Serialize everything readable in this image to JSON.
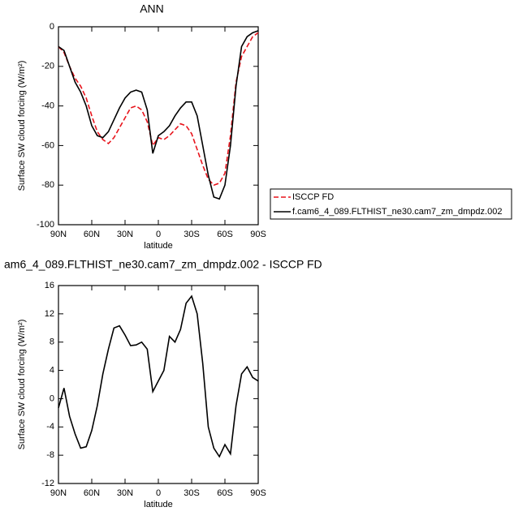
{
  "chart_data": [
    {
      "type": "line",
      "title": "ANN",
      "xlabel": "latitude",
      "ylabel": "Surface SW cloud forcing (W/m²)",
      "x": [
        90,
        85,
        80,
        75,
        70,
        65,
        60,
        55,
        50,
        45,
        40,
        35,
        30,
        25,
        20,
        15,
        10,
        5,
        0,
        -5,
        -10,
        -15,
        -20,
        -25,
        -30,
        -35,
        -40,
        -45,
        -50,
        -55,
        -60,
        -65,
        -70,
        -75,
        -80,
        -85,
        -90
      ],
      "series": [
        {
          "name": "ISCCP FD",
          "color": "#e8141c",
          "style": "dashed",
          "values": [
            -10,
            -13,
            -20,
            -26,
            -30,
            -36,
            -45,
            -53,
            -57,
            -59,
            -56,
            -51,
            -46,
            -41,
            -40,
            -42,
            -48,
            -60,
            -56,
            -57,
            -55,
            -52,
            -49,
            -50,
            -54,
            -62,
            -70,
            -77,
            -80,
            -79,
            -74,
            -55,
            -28,
            -15,
            -10,
            -5,
            -3
          ]
        },
        {
          "name": "f.cam6_4_089.FLTHIST_ne30.cam7_zm_dmpdz.002",
          "color": "#000000",
          "style": "solid",
          "values": [
            -10,
            -12,
            -20,
            -28,
            -33,
            -40,
            -50,
            -55,
            -56,
            -53,
            -47,
            -41,
            -36,
            -33,
            -32,
            -33,
            -42,
            -64,
            -55,
            -53,
            -50,
            -45,
            -41,
            -38,
            -38,
            -45,
            -60,
            -75,
            -86,
            -87,
            -80,
            -60,
            -30,
            -10,
            -5,
            -3,
            -2
          ]
        }
      ],
      "xlim": [
        90,
        -90
      ],
      "xticks": [
        {
          "value": 90,
          "label": "90N"
        },
        {
          "value": 60,
          "label": "60N"
        },
        {
          "value": 30,
          "label": "30N"
        },
        0,
        {
          "value": -30,
          "label": "30S"
        },
        {
          "value": -60,
          "label": "60S"
        },
        {
          "value": -90,
          "label": "90S"
        }
      ],
      "ylim": [
        -100,
        0
      ],
      "yticks": [
        -100,
        -80,
        -60,
        -40,
        -20,
        0
      ],
      "grid": false,
      "legend": "right"
    },
    {
      "type": "line",
      "title": "am6_4_089.FLTHIST_ne30.cam7_zm_dmpdz.002 - ISCCP FD",
      "xlabel": "latitude",
      "ylabel": "Surface SW cloud forcing (W/m²)",
      "x": [
        90,
        85,
        80,
        75,
        70,
        65,
        60,
        55,
        50,
        45,
        40,
        35,
        30,
        25,
        20,
        15,
        10,
        5,
        0,
        -5,
        -10,
        -15,
        -20,
        -25,
        -30,
        -35,
        -40,
        -45,
        -50,
        -55,
        -60,
        -65,
        -70,
        -75,
        -80,
        -85,
        -90
      ],
      "values": [
        -1.3,
        1.5,
        -2.5,
        -5,
        -7,
        -6.8,
        -4.5,
        -1,
        3.5,
        7,
        10,
        10.3,
        9,
        7.5,
        7.6,
        8,
        7,
        1,
        2.5,
        4,
        8.8,
        8,
        9.8,
        13.5,
        14.5,
        12,
        5,
        -4,
        -7,
        -8.2,
        -6.5,
        -7.8,
        -1,
        3.5,
        4.5,
        3,
        2.5
      ],
      "color": "#000000",
      "xlim": [
        90,
        -90
      ],
      "xticks": [
        {
          "value": 90,
          "label": "90N"
        },
        {
          "value": 60,
          "label": "60N"
        },
        {
          "value": 30,
          "label": "30N"
        },
        0,
        {
          "value": -30,
          "label": "30S"
        },
        {
          "value": -60,
          "label": "60S"
        },
        {
          "value": -90,
          "label": "90S"
        }
      ],
      "ylim": [
        -12,
        16
      ],
      "yticks": [
        -12,
        -8,
        -4,
        0,
        4,
        8,
        12,
        16
      ],
      "grid": false
    }
  ]
}
